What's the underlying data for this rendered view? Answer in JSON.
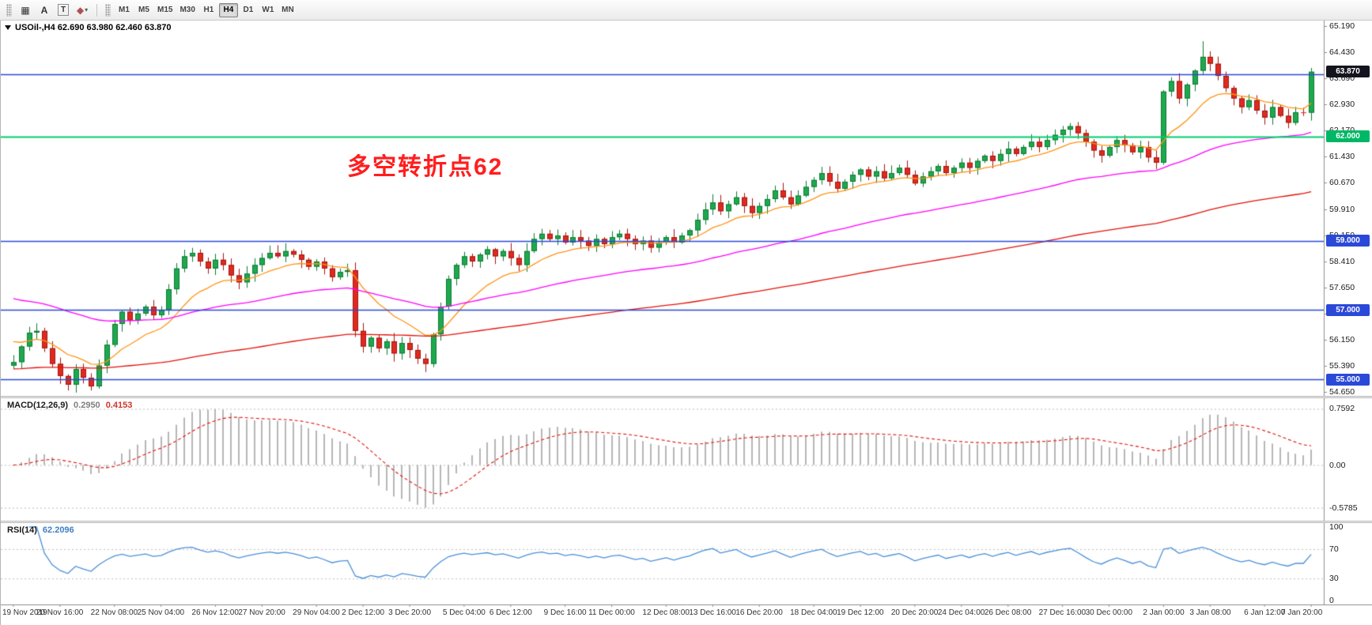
{
  "toolbar": {
    "tool_buttons": [
      {
        "id": "chart-grid",
        "glyph": "▦"
      },
      {
        "id": "text",
        "glyph": "A"
      },
      {
        "id": "text-label",
        "glyph": "T",
        "boxed": true
      },
      {
        "id": "shapes",
        "glyph": "◆",
        "dropdown": "▾"
      }
    ],
    "timeframes": [
      "M1",
      "M5",
      "M15",
      "M30",
      "H1",
      "H4",
      "D1",
      "W1",
      "MN"
    ],
    "active_timeframe": "H4"
  },
  "chart_data": [
    {
      "type": "candlestick",
      "symbol": "USOil",
      "timeframe": "H4",
      "title": "USOil-,H4 62.690 63.980 62.460 63.870",
      "last_ohlc": [
        62.69,
        63.98,
        62.46,
        63.87
      ],
      "first_open": 55.4,
      "closes": [
        55.5,
        55.95,
        56.35,
        56.4,
        55.9,
        55.45,
        55.1,
        54.85,
        55.3,
        55.05,
        54.8,
        55.4,
        56.0,
        56.6,
        56.95,
        56.7,
        56.9,
        57.1,
        56.85,
        57.0,
        57.6,
        58.2,
        58.55,
        58.65,
        58.4,
        58.2,
        58.45,
        58.3,
        58.0,
        57.8,
        58.05,
        58.3,
        58.5,
        58.65,
        58.55,
        58.7,
        58.6,
        58.45,
        58.25,
        58.4,
        58.2,
        57.95,
        58.1,
        58.15,
        56.4,
        55.95,
        56.2,
        55.9,
        56.1,
        55.75,
        56.05,
        55.85,
        55.6,
        55.45,
        56.3,
        57.1,
        57.9,
        58.3,
        58.55,
        58.4,
        58.6,
        58.75,
        58.55,
        58.7,
        58.5,
        58.3,
        58.7,
        59.05,
        59.2,
        59.05,
        59.15,
        58.95,
        59.1,
        59.0,
        58.85,
        59.05,
        58.9,
        59.1,
        59.2,
        59.05,
        58.9,
        59.0,
        58.8,
        58.95,
        59.1,
        58.95,
        59.15,
        59.3,
        59.6,
        59.9,
        60.1,
        59.85,
        60.05,
        60.25,
        60.0,
        59.8,
        60.0,
        60.2,
        60.45,
        60.25,
        60.05,
        60.3,
        60.55,
        60.75,
        60.95,
        60.7,
        60.5,
        60.7,
        60.9,
        61.05,
        60.85,
        61.0,
        60.8,
        60.95,
        61.1,
        60.9,
        60.65,
        60.85,
        61.0,
        61.15,
        60.95,
        61.1,
        61.25,
        61.1,
        61.3,
        61.45,
        61.3,
        61.5,
        61.65,
        61.5,
        61.7,
        61.85,
        61.7,
        61.9,
        62.05,
        62.2,
        62.3,
        62.1,
        61.85,
        61.6,
        61.45,
        61.7,
        61.9,
        61.75,
        61.55,
        61.7,
        61.4,
        61.25,
        63.3,
        63.6,
        63.1,
        63.5,
        63.9,
        64.3,
        64.1,
        63.75,
        63.4,
        63.1,
        62.85,
        63.05,
        62.75,
        62.55,
        62.85,
        62.6,
        62.4,
        62.7,
        62.69,
        63.87
      ],
      "spike": {
        "index": 153,
        "high": 64.75
      },
      "ylim": [
        54.55,
        65.3
      ],
      "up_color": "#1fa94e",
      "up_border": "#0d7a33",
      "down_color": "#e02a1f",
      "down_border": "#a01711",
      "price_axis_ticks": [
        "65.190",
        "64.430",
        "63.690",
        "62.930",
        "62.170",
        "61.430",
        "60.670",
        "59.910",
        "59.150",
        "58.410",
        "57.650",
        "56.890",
        "56.150",
        "55.390",
        "54.650"
      ],
      "moving_averages": [
        {
          "name": "fast-ma",
          "period": 12,
          "init": 56.2,
          "color": "#ff9415"
        },
        {
          "name": "mid-ma",
          "period": 55,
          "init": 57.4,
          "color": "#ff00ff"
        },
        {
          "name": "slow-ma",
          "period": 140,
          "init": 55.3,
          "color": "#e3120b"
        }
      ],
      "hlines": [
        {
          "price": 63.8,
          "color": "#2b49d8",
          "width": 1.5,
          "badge": null
        },
        {
          "price": 62.0,
          "color": "#00cf6f",
          "width": 2,
          "badge": "62.000",
          "badge_bg": "#00b765"
        },
        {
          "price": 59.0,
          "color": "#2b49d8",
          "width": 1.5,
          "badge": "59.000",
          "badge_bg": "#2b49d8"
        },
        {
          "price": 57.0,
          "color": "#2b49d8",
          "width": 1.5,
          "badge": "57.000",
          "badge_bg": "#2b49d8"
        },
        {
          "price": 55.0,
          "color": "#2b49d8",
          "width": 1.5,
          "badge": "55.000",
          "badge_bg": "#2b49d8"
        }
      ],
      "last_price_badge": {
        "label": "63.870",
        "price": 63.87,
        "bg": "#14141f",
        "fg": "#ffffff"
      },
      "annotation": {
        "text": "多空转折点62",
        "color": "#ff1e1e"
      },
      "x_labels": [
        "19 Nov 2019",
        "20 Nov 16:00",
        "22 Nov 08:00",
        "25 Nov 04:00",
        "26 Nov 12:00",
        "27 Nov 20:00",
        "29 Nov 04:00",
        "2 Dec 12:00",
        "3 Dec 20:00",
        "5 Dec 04:00",
        "6 Dec 12:00",
        "9 Dec 16:00",
        "11 Dec 00:00",
        "12 Dec 08:00",
        "13 Dec 16:00",
        "16 Dec 20:00",
        "18 Dec 04:00",
        "19 Dec 12:00",
        "20 Dec 20:00",
        "24 Dec 04:00",
        "26 Dec 08:00",
        "27 Dec 16:00",
        "30 Dec 00:00",
        "2 Jan 00:00",
        "3 Jan 08:00",
        "6 Jan 12:00",
        "7 Jan 20:00"
      ]
    },
    {
      "type": "bar",
      "name": "MACD(12,26,9)",
      "value_main": "0.2950",
      "value_signal": "0.4153",
      "params": {
        "fast": 12,
        "slow": 26,
        "signal": 9
      },
      "axis_ticks": [
        0.7592,
        0.0,
        -0.5785
      ],
      "axis_tick_labels": [
        "0.7592",
        "0.00",
        "-0.5785"
      ],
      "ylim": [
        -0.7,
        0.85
      ],
      "histogram_color": "#b6b6b6",
      "signal_color": "#e3120b"
    },
    {
      "type": "line",
      "name": "RSI(14)",
      "value": "62.2096",
      "period": 14,
      "axis_ticks": [
        100,
        70,
        30,
        0
      ],
      "levels": [
        70,
        30
      ],
      "ylim": [
        0,
        100
      ],
      "line_color": "#4a90d9"
    }
  ]
}
